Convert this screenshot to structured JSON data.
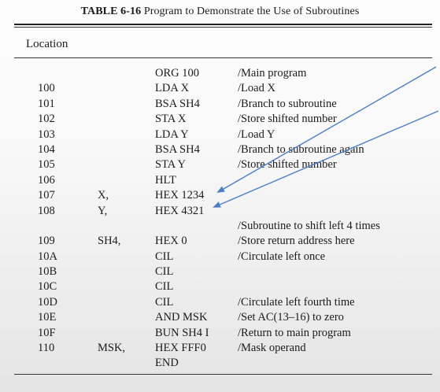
{
  "caption": {
    "label": "TABLE 6-16",
    "title": "Program to Demonstrate the Use of Subroutines"
  },
  "header": {
    "location": "Location"
  },
  "annotation_color": "#4a7fc8",
  "rows": [
    {
      "location": "",
      "symbol": "",
      "instruction": "ORG 100",
      "comment": "/Main program"
    },
    {
      "location": "100",
      "symbol": "",
      "instruction": "LDA X",
      "comment": "/Load X"
    },
    {
      "location": "101",
      "symbol": "",
      "instruction": "BSA SH4",
      "comment": "/Branch to subroutine"
    },
    {
      "location": "102",
      "symbol": "",
      "instruction": "STA X",
      "comment": "/Store shifted number"
    },
    {
      "location": "103",
      "symbol": "",
      "instruction": "LDA Y",
      "comment": "/Load Y"
    },
    {
      "location": "104",
      "symbol": "",
      "instruction": "BSA SH4",
      "comment": "/Branch to subroutine again"
    },
    {
      "location": "105",
      "symbol": "",
      "instruction": "STA Y",
      "comment": "/Store shifted number"
    },
    {
      "location": "106",
      "symbol": "",
      "instruction": "HLT",
      "comment": ""
    },
    {
      "location": "107",
      "symbol": "X,",
      "instruction": "HEX 1234",
      "comment": ""
    },
    {
      "location": "108",
      "symbol": "Y,",
      "instruction": "HEX 4321",
      "comment": ""
    },
    {
      "location": "",
      "symbol": "",
      "instruction": "",
      "comment": "/Subroutine to shift left 4 times"
    },
    {
      "location": "109",
      "symbol": "SH4,",
      "instruction": "HEX 0",
      "comment": "/Store return address here"
    },
    {
      "location": "10A",
      "symbol": "",
      "instruction": "CIL",
      "comment": "/Circulate left once"
    },
    {
      "location": "10B",
      "symbol": "",
      "instruction": "CIL",
      "comment": ""
    },
    {
      "location": "10C",
      "symbol": "",
      "instruction": "CIL",
      "comment": ""
    },
    {
      "location": "10D",
      "symbol": "",
      "instruction": "CIL",
      "comment": "/Circulate left fourth time"
    },
    {
      "location": "10E",
      "symbol": "",
      "instruction": "AND MSK",
      "comment": "/Set AC(13–16) to zero"
    },
    {
      "location": "10F",
      "symbol": "",
      "instruction": "BUN SH4 I",
      "comment": "/Return to main program"
    },
    {
      "location": "110",
      "symbol": "MSK,",
      "instruction": "HEX FFF0",
      "comment": "/Mask operand"
    },
    {
      "location": "",
      "symbol": "",
      "instruction": "END",
      "comment": ""
    }
  ]
}
